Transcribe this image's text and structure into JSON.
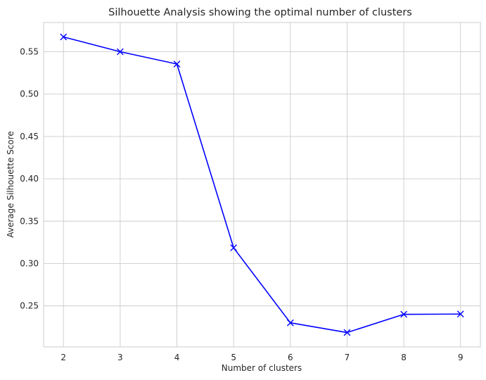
{
  "chart_data": {
    "type": "line",
    "title": "Silhouette Analysis showing the optimal number of clusters",
    "xlabel": "Number of clusters",
    "ylabel": "Average Silhouette Score",
    "x": [
      2,
      3,
      4,
      5,
      6,
      7,
      8,
      9
    ],
    "series": [
      {
        "values": [
          0.5675,
          0.55,
          0.5355,
          0.3185,
          0.23,
          0.2185,
          0.24,
          0.2403
        ],
        "color": "#0000ff",
        "marker": "x"
      }
    ],
    "xlim": [
      1.65,
      9.35
    ],
    "ylim": [
      0.2015,
      0.5845
    ],
    "xticks": [
      "2",
      "3",
      "4",
      "5",
      "6",
      "7",
      "8",
      "9"
    ],
    "yticks": [
      "0.25",
      "0.30",
      "0.35",
      "0.40",
      "0.45",
      "0.50",
      "0.55"
    ],
    "grid": true,
    "legend": false
  }
}
